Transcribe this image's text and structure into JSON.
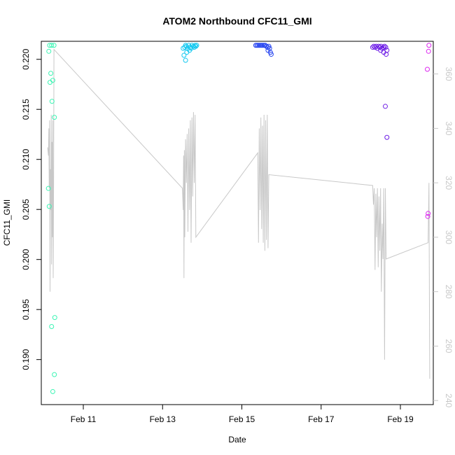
{
  "chart_data": {
    "type": "scatter",
    "title": "ATOM2 Northbound CFC11_GMI",
    "xlabel": "Date",
    "ylabel": "CFC11_GMI",
    "y2label": "",
    "xlim": [
      9.94,
      19.83
    ],
    "ylim": [
      0.1855,
      0.2218
    ],
    "y2lim": [
      238.5,
      372
    ],
    "x_ticks": [
      {
        "value": 11,
        "label": "Feb 11"
      },
      {
        "value": 13,
        "label": "Feb 13"
      },
      {
        "value": 15,
        "label": "Feb 15"
      },
      {
        "value": 17,
        "label": "Feb 17"
      },
      {
        "value": 19,
        "label": "Feb 19"
      }
    ],
    "y_ticks": [
      0.19,
      0.195,
      0.2,
      0.205,
      0.21,
      0.215,
      0.22
    ],
    "y_tick_labels": [
      "0.190",
      "0.195",
      "0.200",
      "0.205",
      "0.210",
      "0.215",
      "0.220"
    ],
    "y2_ticks": [
      240,
      260,
      280,
      300,
      320,
      340,
      360
    ],
    "y2_tick_labels": [
      "240",
      "260",
      "280",
      "300",
      "320",
      "340",
      "360"
    ],
    "grid": false,
    "line_color": "#c8c8c8",
    "scatter_series": [
      {
        "color": "#3cf5b4",
        "points": [
          [
            10.15,
            0.2214
          ],
          [
            10.2,
            0.2214
          ],
          [
            10.26,
            0.2214
          ],
          [
            10.13,
            0.2208
          ],
          [
            10.18,
            0.2186
          ],
          [
            10.23,
            0.2179
          ],
          [
            10.16,
            0.2177
          ],
          [
            10.21,
            0.2158
          ],
          [
            10.27,
            0.2142
          ],
          [
            10.12,
            0.2071
          ],
          [
            10.14,
            0.2053
          ],
          [
            10.28,
            0.1942
          ],
          [
            10.2,
            0.1933
          ],
          [
            10.27,
            0.1885
          ],
          [
            10.23,
            0.1868
          ]
        ]
      },
      {
        "color": "#14c8f0",
        "points": [
          [
            13.52,
            0.2211
          ],
          [
            13.56,
            0.2212
          ],
          [
            13.6,
            0.2213
          ],
          [
            13.58,
            0.2214
          ],
          [
            13.63,
            0.2211
          ],
          [
            13.66,
            0.2214
          ],
          [
            13.7,
            0.2212
          ],
          [
            13.74,
            0.2214
          ],
          [
            13.78,
            0.2213
          ],
          [
            13.82,
            0.2214
          ],
          [
            13.86,
            0.2214
          ],
          [
            13.54,
            0.2204
          ],
          [
            13.61,
            0.2207
          ],
          [
            13.68,
            0.2209
          ],
          [
            13.72,
            0.2211
          ],
          [
            13.8,
            0.2212
          ],
          [
            13.58,
            0.2199
          ],
          [
            13.84,
            0.2213
          ]
        ]
      },
      {
        "color": "#2846f0",
        "points": [
          [
            15.35,
            0.2214
          ],
          [
            15.38,
            0.2214
          ],
          [
            15.41,
            0.2214
          ],
          [
            15.44,
            0.2214
          ],
          [
            15.47,
            0.2214
          ],
          [
            15.5,
            0.2214
          ],
          [
            15.53,
            0.2214
          ],
          [
            15.56,
            0.2214
          ],
          [
            15.59,
            0.2214
          ],
          [
            15.62,
            0.2213
          ],
          [
            15.65,
            0.2212
          ],
          [
            15.68,
            0.2213
          ],
          [
            15.7,
            0.2211
          ],
          [
            15.66,
            0.2209
          ],
          [
            15.72,
            0.2207
          ],
          [
            15.74,
            0.2205
          ]
        ]
      },
      {
        "color": "#6e1ee6",
        "points": [
          [
            18.3,
            0.2212
          ],
          [
            18.33,
            0.2213
          ],
          [
            18.36,
            0.2212
          ],
          [
            18.39,
            0.2213
          ],
          [
            18.42,
            0.2211
          ],
          [
            18.45,
            0.2213
          ],
          [
            18.48,
            0.2212
          ],
          [
            18.51,
            0.2213
          ],
          [
            18.54,
            0.2211
          ],
          [
            18.57,
            0.2212
          ],
          [
            18.6,
            0.2213
          ],
          [
            18.63,
            0.2212
          ],
          [
            18.5,
            0.2209
          ],
          [
            18.58,
            0.2207
          ],
          [
            18.66,
            0.2209
          ],
          [
            18.64,
            0.2205
          ],
          [
            18.62,
            0.2153
          ],
          [
            18.66,
            0.2122
          ]
        ]
      },
      {
        "color": "#dc28f0",
        "points": [
          [
            19.72,
            0.2214
          ],
          [
            19.71,
            0.2208
          ],
          [
            19.68,
            0.219
          ],
          [
            19.7,
            0.2046
          ],
          [
            19.69,
            0.2043
          ]
        ]
      }
    ],
    "line_series": {
      "name": "",
      "segments": [
        [
          [
            10.1,
            333
          ],
          [
            10.12,
            330
          ],
          [
            10.13,
            340
          ],
          [
            10.14,
            318
          ],
          [
            10.15,
            343
          ],
          [
            10.16,
            280
          ],
          [
            10.17,
            325
          ],
          [
            10.18,
            310
          ],
          [
            10.19,
            345
          ],
          [
            10.2,
            290
          ],
          [
            10.21,
            335
          ],
          [
            10.22,
            300
          ],
          [
            10.23,
            343
          ],
          [
            10.24,
            285
          ],
          [
            10.25,
            320
          ],
          [
            10.26,
            369
          ],
          [
            13.5,
            318
          ],
          [
            13.52,
            310
          ],
          [
            13.53,
            330
          ],
          [
            13.54,
            285
          ],
          [
            13.55,
            332
          ],
          [
            13.56,
            300
          ],
          [
            13.58,
            336
          ],
          [
            13.6,
            320
          ],
          [
            13.62,
            338
          ],
          [
            13.64,
            302
          ],
          [
            13.66,
            340
          ],
          [
            13.68,
            310
          ],
          [
            13.7,
            343
          ],
          [
            13.72,
            298
          ],
          [
            13.74,
            344
          ],
          [
            13.76,
            315
          ],
          [
            13.78,
            346
          ],
          [
            13.8,
            320
          ],
          [
            13.82,
            345
          ],
          [
            13.84,
            300
          ],
          [
            15.4,
            331
          ],
          [
            15.42,
            298
          ],
          [
            15.44,
            340
          ],
          [
            15.46,
            310
          ],
          [
            15.48,
            344
          ],
          [
            15.5,
            303
          ],
          [
            15.52,
            341
          ],
          [
            15.54,
            298
          ],
          [
            15.56,
            345
          ],
          [
            15.58,
            295
          ],
          [
            15.6,
            343
          ],
          [
            15.62,
            299
          ],
          [
            15.64,
            345
          ],
          [
            15.66,
            296
          ],
          [
            15.68,
            323
          ],
          [
            18.3,
            319
          ],
          [
            18.32,
            312
          ],
          [
            18.34,
            318
          ],
          [
            18.36,
            288
          ],
          [
            18.38,
            316
          ],
          [
            18.4,
            300
          ],
          [
            18.42,
            318
          ],
          [
            18.44,
            289
          ],
          [
            18.46,
            315
          ],
          [
            18.48,
            295
          ],
          [
            18.5,
            318
          ],
          [
            18.52,
            280
          ],
          [
            18.54,
            305
          ],
          [
            18.56,
            292
          ],
          [
            18.58,
            318
          ],
          [
            18.6,
            255
          ],
          [
            18.62,
            318
          ],
          [
            18.64,
            292
          ],
          [
            19.7,
            298
          ],
          [
            19.72,
            320
          ],
          [
            19.74,
            248
          ]
        ]
      ]
    }
  }
}
